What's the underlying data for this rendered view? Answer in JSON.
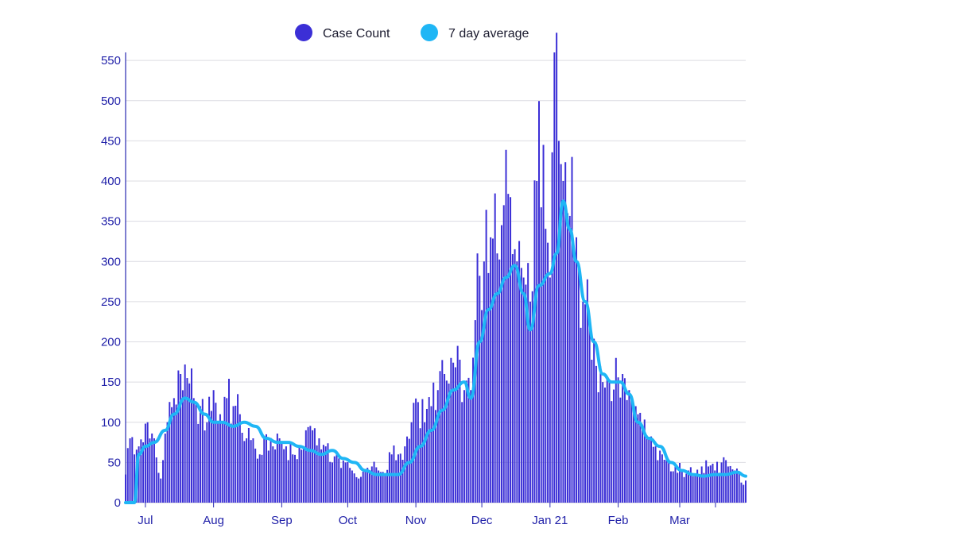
{
  "chart_data": {
    "type": "bar",
    "title": "",
    "xlabel": "",
    "ylabel": "",
    "ylim": [
      0,
      560
    ],
    "y_ticks": [
      0,
      50,
      100,
      150,
      200,
      250,
      300,
      350,
      400,
      450,
      500,
      550
    ],
    "x_ticks": [
      {
        "label": "Jul",
        "date": "2020-07-01"
      },
      {
        "label": "Aug",
        "date": "2020-08-01"
      },
      {
        "label": "Sep",
        "date": "2020-09-01"
      },
      {
        "label": "Oct",
        "date": "2020-10-01"
      },
      {
        "label": "Nov",
        "date": "2020-11-01"
      },
      {
        "label": "Dec",
        "date": "2020-12-01"
      },
      {
        "label": "Jan 21",
        "date": "2021-01-01"
      },
      {
        "label": "Feb",
        "date": "2021-02-01"
      },
      {
        "label": "Mar",
        "date": "2021-03-01"
      }
    ],
    "x_range": [
      "2020-06-22",
      "2021-03-31"
    ],
    "grid": true,
    "legend_position": "top-center",
    "series": [
      {
        "name": "Case Count",
        "kind": "bar",
        "color": "#3b2fd6",
        "points": [
          [
            "2020-06-22",
            35
          ],
          [
            "2020-06-24",
            80
          ],
          [
            "2020-06-26",
            60
          ],
          [
            "2020-06-28",
            70
          ],
          [
            "2020-06-30",
            75
          ],
          [
            "2020-07-02",
            100
          ],
          [
            "2020-07-05",
            80
          ],
          [
            "2020-07-08",
            30
          ],
          [
            "2020-07-11",
            100
          ],
          [
            "2020-07-14",
            130
          ],
          [
            "2020-07-17",
            160
          ],
          [
            "2020-07-20",
            155
          ],
          [
            "2020-07-23",
            130
          ],
          [
            "2020-07-26",
            120
          ],
          [
            "2020-07-29",
            100
          ],
          [
            "2020-08-01",
            140
          ],
          [
            "2020-08-04",
            110
          ],
          [
            "2020-08-07",
            130
          ],
          [
            "2020-08-10",
            120
          ],
          [
            "2020-08-13",
            110
          ],
          [
            "2020-08-16",
            80
          ],
          [
            "2020-08-19",
            80
          ],
          [
            "2020-08-22",
            60
          ],
          [
            "2020-08-25",
            85
          ],
          [
            "2020-08-28",
            70
          ],
          [
            "2020-08-31",
            80
          ],
          [
            "2020-09-03",
            70
          ],
          [
            "2020-09-06",
            60
          ],
          [
            "2020-09-09",
            70
          ],
          [
            "2020-09-12",
            90
          ],
          [
            "2020-09-15",
            90
          ],
          [
            "2020-09-18",
            80
          ],
          [
            "2020-09-21",
            70
          ],
          [
            "2020-09-24",
            50
          ],
          [
            "2020-09-27",
            55
          ],
          [
            "2020-09-30",
            50
          ],
          [
            "2020-10-03",
            40
          ],
          [
            "2020-10-06",
            30
          ],
          [
            "2020-10-09",
            40
          ],
          [
            "2020-10-12",
            45
          ],
          [
            "2020-10-15",
            40
          ],
          [
            "2020-10-18",
            35
          ],
          [
            "2020-10-21",
            60
          ],
          [
            "2020-10-24",
            60
          ],
          [
            "2020-10-27",
            70
          ],
          [
            "2020-10-30",
            100
          ],
          [
            "2020-11-02",
            125
          ],
          [
            "2020-11-05",
            100
          ],
          [
            "2020-11-08",
            120
          ],
          [
            "2020-11-11",
            140
          ],
          [
            "2020-11-14",
            160
          ],
          [
            "2020-11-17",
            180
          ],
          [
            "2020-11-20",
            195
          ],
          [
            "2020-11-23",
            140
          ],
          [
            "2020-11-26",
            140
          ],
          [
            "2020-11-29",
            310
          ],
          [
            "2020-12-02",
            300
          ],
          [
            "2020-12-05",
            330
          ],
          [
            "2020-12-08",
            310
          ],
          [
            "2020-12-11",
            370
          ],
          [
            "2020-12-14",
            380
          ],
          [
            "2020-12-17",
            300
          ],
          [
            "2020-12-20",
            280
          ],
          [
            "2020-12-23",
            250
          ],
          [
            "2020-12-26",
            400
          ],
          [
            "2020-12-29",
            445
          ],
          [
            "2021-01-01",
            280
          ],
          [
            "2021-01-03",
            560
          ],
          [
            "2021-01-05",
            450
          ],
          [
            "2021-01-07",
            400
          ],
          [
            "2021-01-09",
            360
          ],
          [
            "2021-01-11",
            430
          ],
          [
            "2021-01-13",
            330
          ],
          [
            "2021-01-16",
            250
          ],
          [
            "2021-01-19",
            220
          ],
          [
            "2021-01-22",
            170
          ],
          [
            "2021-01-25",
            150
          ],
          [
            "2021-01-28",
            150
          ],
          [
            "2021-01-31",
            180
          ],
          [
            "2021-02-03",
            160
          ],
          [
            "2021-02-06",
            140
          ],
          [
            "2021-02-09",
            120
          ],
          [
            "2021-02-12",
            90
          ],
          [
            "2021-02-15",
            80
          ],
          [
            "2021-02-18",
            70
          ],
          [
            "2021-02-21",
            60
          ],
          [
            "2021-02-24",
            50
          ],
          [
            "2021-02-27",
            45
          ],
          [
            "2021-03-02",
            40
          ],
          [
            "2021-03-05",
            40
          ],
          [
            "2021-03-08",
            35
          ],
          [
            "2021-03-11",
            45
          ],
          [
            "2021-03-14",
            45
          ],
          [
            "2021-03-17",
            40
          ],
          [
            "2021-03-20",
            50
          ],
          [
            "2021-03-23",
            45
          ],
          [
            "2021-03-26",
            40
          ],
          [
            "2021-03-29",
            25
          ],
          [
            "2021-03-31",
            25
          ]
        ]
      },
      {
        "name": "7 day average",
        "kind": "line",
        "color": "#1fb6f5",
        "points": [
          [
            "2020-06-22",
            0
          ],
          [
            "2020-06-26",
            0
          ],
          [
            "2020-06-28",
            60
          ],
          [
            "2020-07-01",
            70
          ],
          [
            "2020-07-05",
            75
          ],
          [
            "2020-07-10",
            90
          ],
          [
            "2020-07-14",
            110
          ],
          [
            "2020-07-19",
            130
          ],
          [
            "2020-07-23",
            125
          ],
          [
            "2020-07-28",
            110
          ],
          [
            "2020-08-01",
            100
          ],
          [
            "2020-08-05",
            100
          ],
          [
            "2020-08-10",
            95
          ],
          [
            "2020-08-15",
            100
          ],
          [
            "2020-08-20",
            95
          ],
          [
            "2020-08-25",
            80
          ],
          [
            "2020-08-30",
            75
          ],
          [
            "2020-09-04",
            75
          ],
          [
            "2020-09-09",
            70
          ],
          [
            "2020-09-14",
            65
          ],
          [
            "2020-09-19",
            60
          ],
          [
            "2020-09-24",
            65
          ],
          [
            "2020-09-29",
            55
          ],
          [
            "2020-10-04",
            50
          ],
          [
            "2020-10-09",
            40
          ],
          [
            "2020-10-14",
            35
          ],
          [
            "2020-10-19",
            35
          ],
          [
            "2020-10-24",
            35
          ],
          [
            "2020-10-29",
            50
          ],
          [
            "2020-11-03",
            70
          ],
          [
            "2020-11-08",
            90
          ],
          [
            "2020-11-13",
            115
          ],
          [
            "2020-11-18",
            140
          ],
          [
            "2020-11-23",
            150
          ],
          [
            "2020-11-26",
            130
          ],
          [
            "2020-11-30",
            200
          ],
          [
            "2020-12-04",
            240
          ],
          [
            "2020-12-08",
            260
          ],
          [
            "2020-12-12",
            280
          ],
          [
            "2020-12-16",
            295
          ],
          [
            "2020-12-20",
            260
          ],
          [
            "2020-12-23",
            215
          ],
          [
            "2020-12-27",
            270
          ],
          [
            "2021-01-01",
            285
          ],
          [
            "2021-01-04",
            310
          ],
          [
            "2021-01-07",
            375
          ],
          [
            "2021-01-10",
            340
          ],
          [
            "2021-01-13",
            300
          ],
          [
            "2021-01-17",
            250
          ],
          [
            "2021-01-21",
            200
          ],
          [
            "2021-01-25",
            160
          ],
          [
            "2021-01-29",
            150
          ],
          [
            "2021-02-02",
            150
          ],
          [
            "2021-02-06",
            135
          ],
          [
            "2021-02-10",
            100
          ],
          [
            "2021-02-15",
            80
          ],
          [
            "2021-02-20",
            70
          ],
          [
            "2021-02-25",
            50
          ],
          [
            "2021-03-02",
            40
          ],
          [
            "2021-03-07",
            35
          ],
          [
            "2021-03-12",
            33
          ],
          [
            "2021-03-17",
            35
          ],
          [
            "2021-03-22",
            35
          ],
          [
            "2021-03-27",
            38
          ],
          [
            "2021-03-31",
            33
          ]
        ]
      }
    ]
  }
}
